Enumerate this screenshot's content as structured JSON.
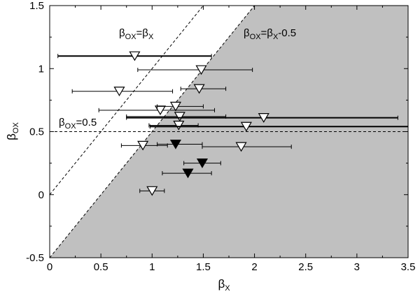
{
  "chart_data": {
    "type": "scatter",
    "xlabel": "βX",
    "ylabel": "βOX",
    "xlim": [
      0,
      3.5
    ],
    "ylim": [
      -0.5,
      1.5
    ],
    "xticks": [
      "0",
      "0.5",
      "1",
      "1.5",
      "2",
      "2.5",
      "3",
      "3.5"
    ],
    "yticks": [
      "-0.5",
      "0",
      "0.5",
      "1",
      "1.5"
    ],
    "grid": false,
    "legend": "none",
    "shaded_region": {
      "description": "βOX < βX - 0.5",
      "color": "#c0c0c0"
    },
    "lines": [
      {
        "label": "βOX=βX",
        "slope": 1,
        "intercept": 0,
        "style": "dashed"
      },
      {
        "label": "βOX=βX-0.5",
        "slope": 1,
        "intercept": -0.5,
        "style": "dashed"
      },
      {
        "label": "βOX=0.5",
        "slope": 0,
        "intercept": 0.5,
        "style": "dashed"
      }
    ],
    "annotations": [
      {
        "text_main": "β",
        "sub1": "OX",
        "mid": "=β",
        "sub2": "X",
        "tail": ""
      },
      {
        "text_main": "β",
        "sub1": "OX",
        "mid": "=β",
        "sub2": "X",
        "tail": "-0.5"
      },
      {
        "text_main": "β",
        "sub1": "OX",
        "mid": "=0.5",
        "sub2": "",
        "tail": ""
      }
    ],
    "points": [
      {
        "x": 0.83,
        "y": 1.1,
        "xerr": [
          0.08,
          1.58
        ],
        "filled": false
      },
      {
        "x": 1.48,
        "y": 0.99,
        "xerr": [
          0.86,
          1.98
        ],
        "filled": false
      },
      {
        "x": 0.68,
        "y": 0.82,
        "xerr": [
          0.22,
          1.2
        ],
        "filled": false
      },
      {
        "x": 1.46,
        "y": 0.84,
        "xerr": [
          1.28,
          1.72
        ],
        "filled": false
      },
      {
        "x": 1.08,
        "y": 0.67,
        "xerr": [
          0.48,
          1.61
        ],
        "filled": false
      },
      {
        "x": 1.23,
        "y": 0.7,
        "xerr": [
          1.05,
          1.5
        ],
        "filled": false
      },
      {
        "x": 1.27,
        "y": 0.62,
        "xerr": [
          0.75,
          1.72
        ],
        "filled": false
      },
      {
        "x": 2.09,
        "y": 0.61,
        "xerr": [
          0.75,
          3.4
        ],
        "filled": false
      },
      {
        "x": 1.26,
        "y": 0.55,
        "xerr": [
          0.97,
          1.45
        ],
        "filled": false
      },
      {
        "x": 1.92,
        "y": 0.54,
        "xerr": [
          0.98,
          3.5
        ],
        "filled": false
      },
      {
        "x": 0.91,
        "y": 0.39,
        "xerr": [
          0.7,
          1.15
        ],
        "filled": false
      },
      {
        "x": 1.23,
        "y": 0.4,
        "xerr": [
          1.05,
          1.49
        ],
        "filled": true
      },
      {
        "x": 1.87,
        "y": 0.38,
        "xerr": [
          1.49,
          2.36
        ],
        "filled": false
      },
      {
        "x": 1.49,
        "y": 0.25,
        "xerr": [
          1.31,
          1.67
        ],
        "filled": true
      },
      {
        "x": 1.35,
        "y": 0.17,
        "xerr": [
          1.1,
          1.58
        ],
        "filled": true
      },
      {
        "x": 1.0,
        "y": 0.03,
        "xerr": [
          0.88,
          1.12
        ],
        "filled": false
      }
    ]
  }
}
